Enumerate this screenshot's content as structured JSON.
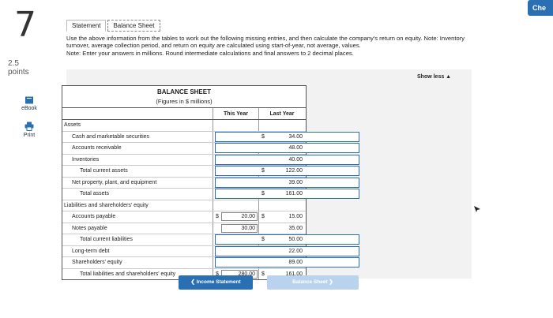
{
  "question": {
    "number": "7",
    "points_value": "2.5",
    "points_label": "points"
  },
  "sidebar": {
    "ebook_label": "eBook",
    "print_label": "Print"
  },
  "check_button": "Che",
  "tabs": [
    {
      "label": "Statement"
    },
    {
      "label": "Balance Sheet"
    }
  ],
  "instructions": {
    "text": "Use the above information from the tables to work out the following missing entries, and then calculate the company's return on equity. Note: Inventory turnover, average collection period, and return on equity are calculated using start-of-year, not average, values.",
    "note": "Note: Enter your answers in millions. Round intermediate calculations and final answers to 2 decimal places."
  },
  "show_less": "Show less ▲",
  "balance_sheet": {
    "title": "BALANCE SHEET",
    "subtitle": "(Figures in $ millions)",
    "col_this_year": "This Year",
    "col_last_year": "Last Year",
    "rows": [
      {
        "label": "Assets",
        "indent": 0,
        "ty_type": "none",
        "ty_dollar": "",
        "ty_value": "",
        "ly_dollar": "",
        "ly_value": ""
      },
      {
        "label": "Cash and marketable securities",
        "indent": 1,
        "ty_type": "input",
        "ty_dollar": "",
        "ty_value": "",
        "ly_dollar": "$",
        "ly_value": "34.00"
      },
      {
        "label": "Accounts receivable",
        "indent": 1,
        "ty_type": "input",
        "ty_dollar": "",
        "ty_value": "",
        "ly_dollar": "",
        "ly_value": "48.00"
      },
      {
        "label": "Inventories",
        "indent": 1,
        "ty_type": "input",
        "ty_dollar": "",
        "ty_value": "",
        "ly_dollar": "",
        "ly_value": "40.00"
      },
      {
        "label": "Total current assets",
        "indent": 2,
        "ty_type": "input",
        "ty_dollar": "",
        "ty_value": "",
        "ly_dollar": "$",
        "ly_value": "122.00"
      },
      {
        "label": "Net property, plant, and equipment",
        "indent": 1,
        "ty_type": "input",
        "ty_dollar": "",
        "ty_value": "",
        "ly_dollar": "",
        "ly_value": "39.00"
      },
      {
        "label": "Total assets",
        "indent": 2,
        "ty_type": "input",
        "ty_dollar": "",
        "ty_value": "",
        "ly_dollar": "$",
        "ly_value": "161.00"
      },
      {
        "label": "Liabilities and shareholders' equity",
        "indent": 0,
        "ty_type": "none",
        "ty_dollar": "",
        "ty_value": "",
        "ly_dollar": "",
        "ly_value": ""
      },
      {
        "label": "Accounts payable",
        "indent": 1,
        "ty_type": "value",
        "ty_dollar": "$",
        "ty_value": "20.00",
        "ly_dollar": "$",
        "ly_value": "15.00"
      },
      {
        "label": "Notes payable",
        "indent": 1,
        "ty_type": "value",
        "ty_dollar": "",
        "ty_value": "30.00",
        "ly_dollar": "",
        "ly_value": "35.00"
      },
      {
        "label": "Total current liabilities",
        "indent": 2,
        "ty_type": "input",
        "ty_dollar": "",
        "ty_value": "",
        "ly_dollar": "$",
        "ly_value": "50.00"
      },
      {
        "label": "Long-term debt",
        "indent": 1,
        "ty_type": "input",
        "ty_dollar": "",
        "ty_value": "",
        "ly_dollar": "",
        "ly_value": "22.00"
      },
      {
        "label": "Shareholders' equity",
        "indent": 1,
        "ty_type": "input",
        "ty_dollar": "",
        "ty_value": "",
        "ly_dollar": "",
        "ly_value": "89.00"
      },
      {
        "label": "Total liabilities and shareholders' equity",
        "indent": 2,
        "ty_type": "value",
        "ty_dollar": "$",
        "ty_value": "280.00",
        "ly_dollar": "$",
        "ly_value": "161.00"
      }
    ]
  },
  "nav": {
    "prev_label": "Income Statement",
    "next_label": "Balance Sheet"
  },
  "colors": {
    "accent": "#2a6fb3",
    "accent_light": "#b9d3ee",
    "panel": "#f2f2f2"
  }
}
